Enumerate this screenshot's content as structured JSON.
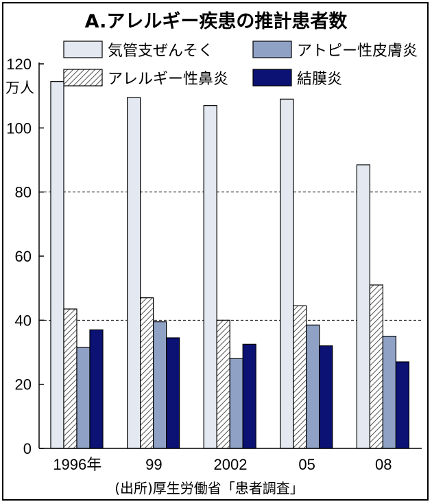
{
  "chart_data": {
    "type": "bar",
    "title": "A.アレルギー疾患の推計患者数",
    "y_unit": "万人",
    "categories": [
      "1996年",
      "99",
      "2002",
      "05",
      "08"
    ],
    "ylim": [
      0,
      120
    ],
    "yticks": [
      0,
      20,
      40,
      60,
      80,
      100,
      120
    ],
    "gridlines": [
      40,
      80
    ],
    "legend_position": "top",
    "series": [
      {
        "name": "気管支ぜんそく",
        "values": [
          114.5,
          109.5,
          107,
          109,
          88.5
        ],
        "color": "#e3e8f1",
        "pattern": "solid"
      },
      {
        "name": "アレルギー性鼻炎",
        "values": [
          43.5,
          47,
          40,
          44.5,
          51
        ],
        "color": "#ffffff",
        "pattern": "hatch"
      },
      {
        "name": "アトピー性皮膚炎",
        "values": [
          31.5,
          39.5,
          28,
          38.5,
          35
        ],
        "color": "#8fa2c6",
        "pattern": "solid"
      },
      {
        "name": "結膜炎",
        "values": [
          37,
          34.5,
          32.5,
          32,
          27
        ],
        "color": "#0b1274",
        "pattern": "solid"
      }
    ],
    "source": "(出所)厚生労働省「患者調査」"
  }
}
